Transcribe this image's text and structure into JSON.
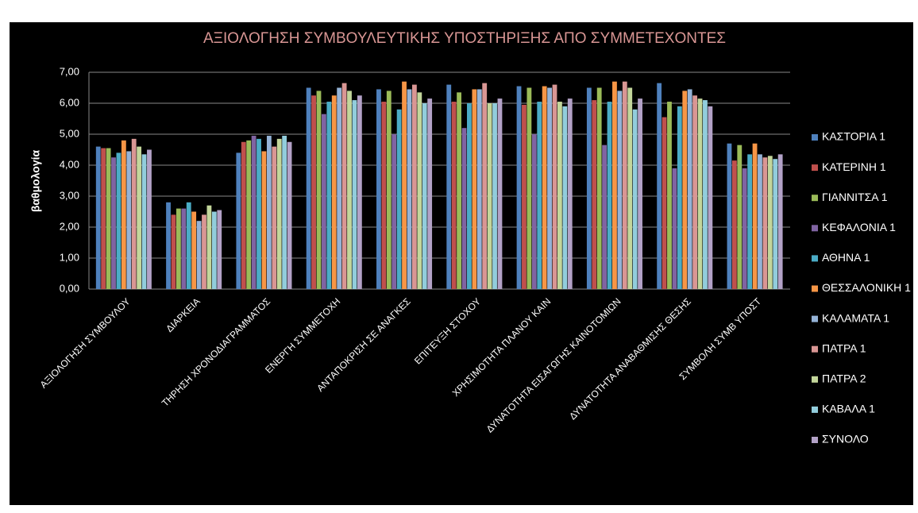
{
  "chart_data": {
    "type": "bar",
    "title": "ΑΞΙΟΛΟΓΗΣΗ ΣΥΜΒΟΥΛΕΥΤΙΚΗΣ ΥΠΟΣΤΗΡΙΞΗΣ ΑΠΟ ΣΥΜΜΕΤΕΧΟΝΤΕΣ",
    "y_label": "βαθμολογία",
    "categories": [
      "ΑΞΙΟΛΟΓΗΣΗ ΣΥΜΒΟΥΛΟΥ",
      "ΔΙΑΡΚΕΙΑ",
      "ΤΗΡΗΣΗ ΧΡΟΝΟΔΙΑΓΡΑΜΜΑΤΟΣ",
      "ΕΝΕΡΓΗ ΣΥΜΜΕΤΟΧΗ",
      "ΑΝΤΑΠΟΚΡΙΣΗ ΣΕ ΑΝΑΓΚΕΣ",
      "ΕΠΙΤΕΥΞΗ ΣΤΟΧΟΥ",
      "ΧΡΗΣΙΜΟΤΗΤΑ ΠΛΑΝΟΥ ΚΑΙΝ",
      "ΔΥΝΑΤΟΤΗΤΑ ΕΙΣΑΓΩΓΗΣ ΚΑΙΝΟΤΟΜΙΩΝ",
      "ΔΥΝΑΤΟΤΗΤΑ ΑΝΑΒΑΘΜΙΣΗΣ ΘΕΣΗΣ",
      "ΣΥΜΒΟΛΗ ΣΥΜΒ ΥΠΟΣΤ"
    ],
    "series": [
      {
        "name": "ΚΑΣΤΟΡΙΑ 1",
        "color": "#4f81bd",
        "values": [
          4.6,
          2.8,
          4.4,
          6.5,
          6.45,
          6.6,
          6.55,
          6.5,
          6.65,
          4.7
        ]
      },
      {
        "name": "ΚΑΤΕΡΙΝΗ 1",
        "color": "#c0504d",
        "values": [
          4.55,
          2.4,
          4.75,
          6.25,
          6.05,
          6.05,
          5.95,
          6.1,
          5.55,
          4.15
        ]
      },
      {
        "name": "ΓΙΑΝΝΙΤΣΑ 1",
        "color": "#9bbb59",
        "values": [
          4.55,
          2.6,
          4.8,
          6.4,
          6.4,
          6.35,
          6.5,
          6.5,
          6.05,
          4.65
        ]
      },
      {
        "name": "ΚΕΦΑΛΟΝΙΑ 1",
        "color": "#8064a2",
        "values": [
          4.25,
          2.6,
          4.95,
          5.65,
          5.0,
          5.2,
          5.0,
          4.65,
          3.9,
          3.9
        ]
      },
      {
        "name": "ΑΘΗΝΑ 1",
        "color": "#4bacc6",
        "values": [
          4.4,
          2.8,
          4.85,
          6.05,
          5.8,
          6.0,
          6.05,
          6.05,
          5.9,
          4.35
        ]
      },
      {
        "name": "ΘΕΣΣΑΛΟΝΙΚΗ 1",
        "color": "#f79646",
        "values": [
          4.8,
          2.5,
          4.45,
          6.25,
          6.7,
          6.45,
          6.55,
          6.7,
          6.4,
          4.7
        ]
      },
      {
        "name": "ΚΑΛΑΜΑΤΑ 1",
        "color": "#95b3d7",
        "values": [
          4.45,
          2.2,
          4.95,
          6.5,
          6.45,
          6.45,
          6.5,
          6.4,
          6.45,
          4.35
        ]
      },
      {
        "name": "ΠΑΤΡΑ 1",
        "color": "#d99694",
        "values": [
          4.85,
          2.4,
          4.6,
          6.65,
          6.6,
          6.65,
          6.6,
          6.7,
          6.25,
          4.25
        ]
      },
      {
        "name": "ΠΑΤΡΑ 2",
        "color": "#c3d69b",
        "values": [
          4.6,
          2.7,
          4.85,
          6.4,
          6.35,
          6.0,
          6.05,
          6.5,
          6.15,
          4.3
        ]
      },
      {
        "name": "ΚΑΒΑΛΑ 1",
        "color": "#92cddc",
        "values": [
          4.35,
          2.5,
          4.95,
          6.1,
          6.0,
          6.0,
          5.9,
          5.8,
          6.1,
          4.2
        ]
      },
      {
        "name": "ΣΥΝΟΛΟ",
        "color": "#b3a2c7",
        "values": [
          4.5,
          2.55,
          4.75,
          6.25,
          6.15,
          6.15,
          6.15,
          6.15,
          5.9,
          4.35
        ]
      }
    ],
    "ylim": [
      0,
      7
    ],
    "yticks": [
      {
        "value": 0,
        "label": "0,00"
      },
      {
        "value": 1,
        "label": "1,00"
      },
      {
        "value": 2,
        "label": "2,00"
      },
      {
        "value": 3,
        "label": "3,00"
      },
      {
        "value": 4,
        "label": "4,00"
      },
      {
        "value": 5,
        "label": "5,00"
      },
      {
        "value": 6,
        "label": "6,00"
      },
      {
        "value": 7,
        "label": "7,00"
      }
    ],
    "grid": true,
    "legend": "right"
  }
}
